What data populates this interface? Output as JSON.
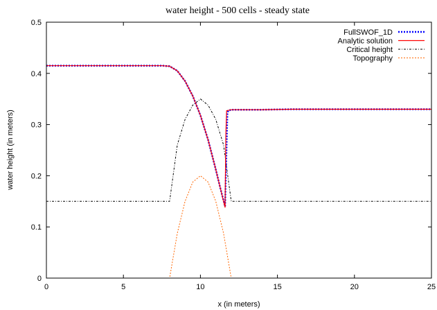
{
  "chart_data": {
    "type": "line",
    "title": "water height - 500 cells - steady state",
    "xlabel": "x (in meters)",
    "ylabel": "water height (in meters)",
    "xlim": [
      0,
      25
    ],
    "ylim": [
      0,
      0.5
    ],
    "xticks": [
      0,
      5,
      10,
      15,
      20,
      25
    ],
    "yticks": [
      0,
      0.1,
      0.2,
      0.3,
      0.4,
      0.5
    ],
    "ytick_labels": [
      "0",
      "0.1",
      "0.2",
      "0.3",
      "0.4",
      "0.5"
    ],
    "legend_position": "top-right",
    "grid": false,
    "series": [
      {
        "name": "FullSWOF_1D",
        "color": "#0000ff",
        "style": "dotted-thick",
        "x": [
          0,
          2,
          4,
          6,
          7,
          7.5,
          8,
          8.5,
          9,
          9.5,
          10,
          10.5,
          11,
          11.3,
          11.6,
          11.75,
          11.8,
          12,
          14,
          16,
          18,
          20,
          22,
          25
        ],
        "y": [
          0.415,
          0.415,
          0.415,
          0.415,
          0.415,
          0.415,
          0.414,
          0.405,
          0.385,
          0.356,
          0.318,
          0.27,
          0.212,
          0.175,
          0.14,
          0.32,
          0.327,
          0.329,
          0.329,
          0.33,
          0.33,
          0.33,
          0.33,
          0.33
        ]
      },
      {
        "name": "Analytic solution",
        "color": "#ff0000",
        "style": "solid",
        "x": [
          0,
          2,
          4,
          6,
          7,
          7.5,
          8,
          8.5,
          9,
          9.5,
          10,
          10.5,
          11,
          11.3,
          11.6,
          11.65,
          11.7,
          12,
          14,
          16,
          18,
          20,
          22,
          25
        ],
        "y": [
          0.415,
          0.415,
          0.415,
          0.415,
          0.415,
          0.415,
          0.414,
          0.405,
          0.385,
          0.356,
          0.318,
          0.27,
          0.212,
          0.175,
          0.138,
          0.28,
          0.327,
          0.329,
          0.329,
          0.33,
          0.33,
          0.33,
          0.33,
          0.33
        ]
      },
      {
        "name": "Critical height",
        "color": "#000000",
        "style": "dash-dot",
        "x": [
          0,
          8,
          8.5,
          9,
          9.5,
          10,
          10.5,
          11,
          11.5,
          12,
          25
        ],
        "y": [
          0.15,
          0.15,
          0.26,
          0.31,
          0.338,
          0.35,
          0.338,
          0.31,
          0.26,
          0.15,
          0.15
        ]
      },
      {
        "name": "Topography",
        "color": "#ff6600",
        "style": "dashed",
        "x": [
          0,
          8,
          8.5,
          9,
          9.5,
          10,
          10.5,
          11,
          11.5,
          12,
          25
        ],
        "y": [
          0,
          0,
          0.0875,
          0.15,
          0.1875,
          0.2,
          0.1875,
          0.15,
          0.0875,
          0,
          0
        ]
      }
    ]
  }
}
